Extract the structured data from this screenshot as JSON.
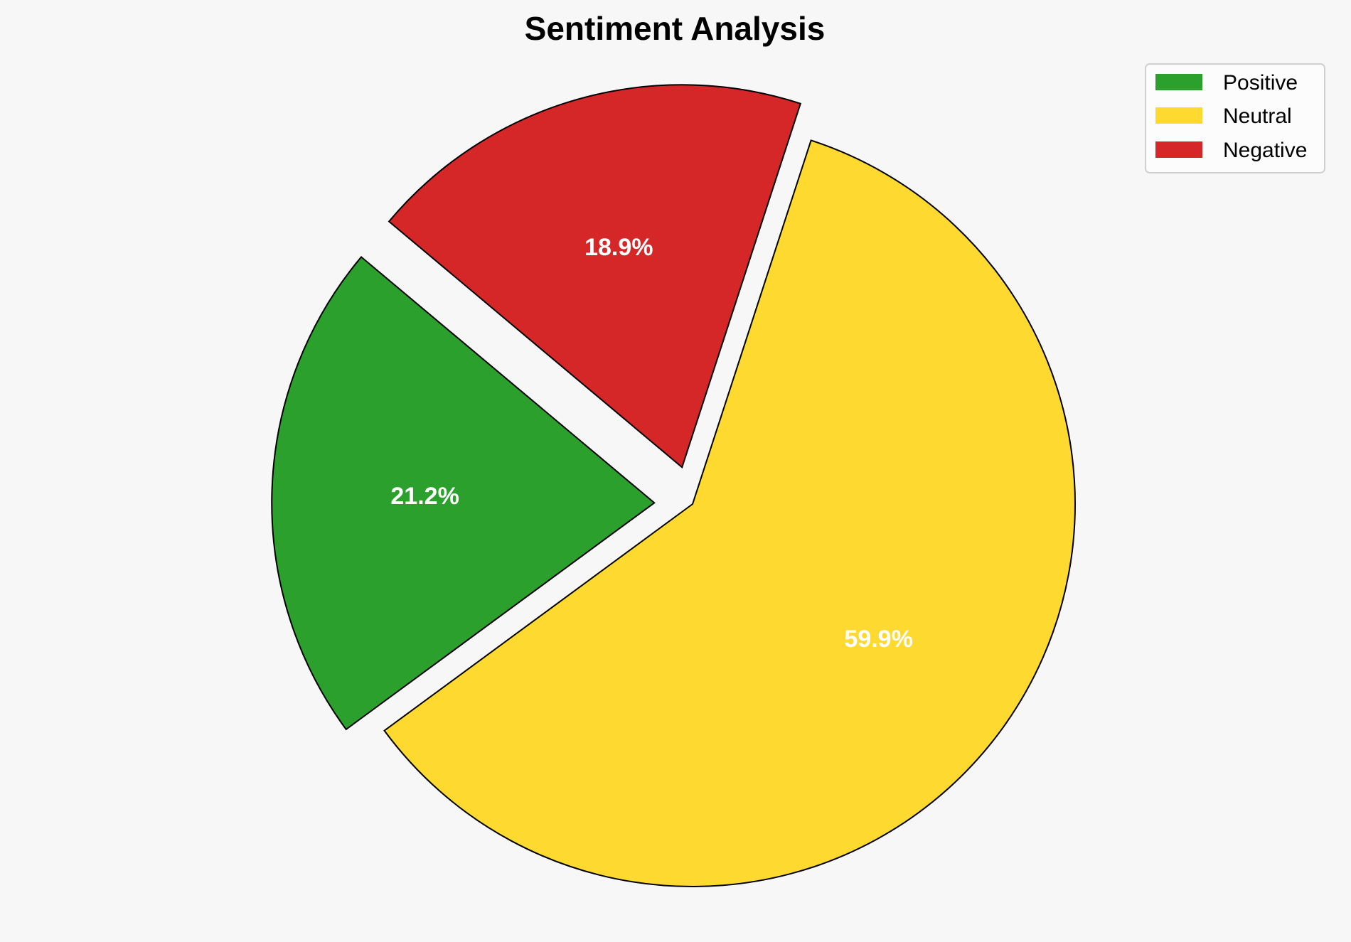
{
  "chart_data": {
    "type": "pie",
    "title": "Sentiment Analysis",
    "categories": [
      "Positive",
      "Neutral",
      "Negative"
    ],
    "values": [
      21.2,
      59.9,
      18.9
    ],
    "labels": [
      "21.2%",
      "59.9%",
      "18.9%"
    ],
    "colors": [
      "#2ca02c",
      "#fed930",
      "#d62728"
    ],
    "explode": [
      0.1,
      0,
      0.1
    ],
    "start_angle": 140,
    "edge_color": "#000000",
    "legend_position": "top-right",
    "background": "#f7f7f7"
  }
}
